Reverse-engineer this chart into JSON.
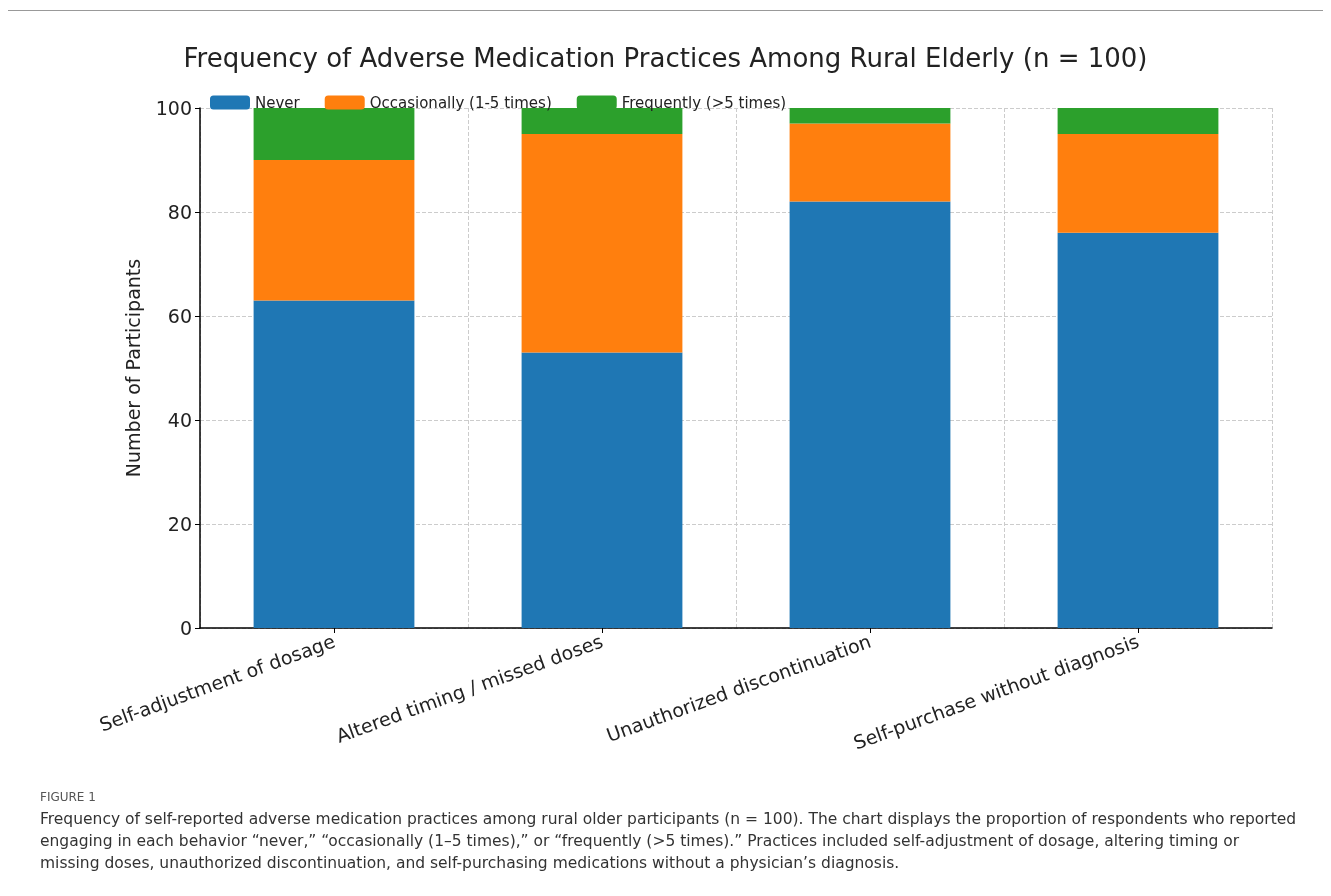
{
  "chart_data": {
    "type": "bar",
    "title": "Frequency of Adverse Medication Practices Among Rural Elderly (n = 100)",
    "ylabel": "Number of Participants",
    "categories": [
      "Self-adjustment of dosage",
      "Altered timing / missed doses",
      "Unauthorized discontinuation",
      "Self-purchase without diagnosis"
    ],
    "stacked": true,
    "series": [
      {
        "name": "Never",
        "color": "#1f77b4",
        "values": [
          63,
          53,
          82,
          76
        ]
      },
      {
        "name": "Occasionally (1-5 times)",
        "color": "#ff7f0e",
        "values": [
          27,
          42,
          15,
          19
        ]
      },
      {
        "name": "Frequently (>5 times)",
        "color": "#2ca02c",
        "values": [
          10,
          5,
          3,
          5
        ]
      }
    ],
    "ylim": [
      0,
      100
    ],
    "yticks": [
      0,
      20,
      40,
      60,
      80,
      100
    ],
    "grid": true,
    "legend": "top left",
    "annotations": [
      "FIGURE 1",
      "Frequency of self-reported adverse medication practices among rural older participants (n = 100). The chart displays the proportion of respondents who reported engaging in each behavior “never,” “occasionally (1–5 times),” or “frequently (>5 times).” Practices included self-adjustment of dosage, altering timing or missing doses, unauthorized discontinuation, and self-purchasing medications without a physician’s diagnosis."
    ]
  }
}
